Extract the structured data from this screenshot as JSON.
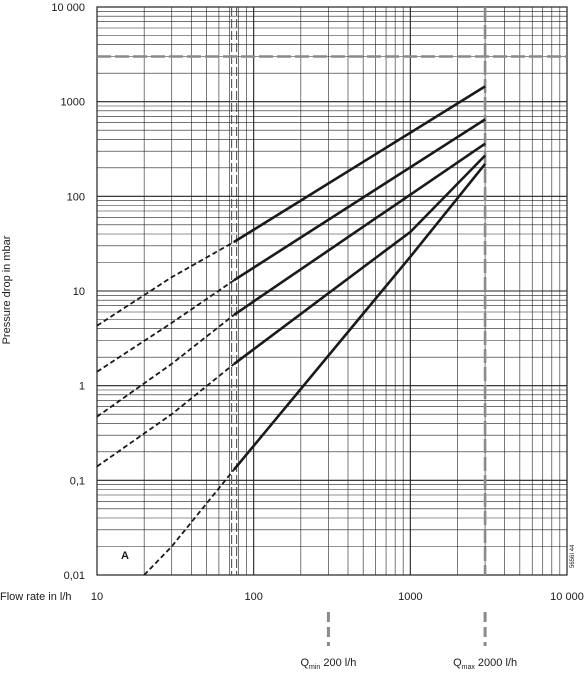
{
  "chart_data": {
    "type": "line",
    "xscale": "log",
    "yscale": "log",
    "xlim": [
      10,
      10000
    ],
    "ylim": [
      0.01,
      10000
    ],
    "xlabel": "Flow rate in l/h",
    "ylabel": "Pressure drop in mbar",
    "x_ticks": [
      10,
      100,
      1000,
      10000
    ],
    "x_tick_labels": [
      "10",
      "100",
      "1000",
      "10 000"
    ],
    "y_ticks": [
      0.01,
      0.1,
      1,
      10,
      100,
      1000,
      10000
    ],
    "y_tick_labels": [
      "0,01",
      "0,1",
      "1",
      "10",
      "100",
      "1000",
      "10 000"
    ],
    "grid": true,
    "series": [
      {
        "dashed": {
          "x": [
            10,
            30,
            75
          ],
          "y": [
            4.3,
            14,
            33
          ]
        },
        "solid": {
          "x": [
            75,
            3000
          ],
          "y": [
            33,
            1450
          ]
        }
      },
      {
        "dashed": {
          "x": [
            10,
            30,
            75
          ],
          "y": [
            1.4,
            4.6,
            13
          ]
        },
        "solid": {
          "x": [
            75,
            3000
          ],
          "y": [
            13,
            650
          ]
        }
      },
      {
        "dashed": {
          "x": [
            10,
            30,
            75
          ],
          "y": [
            0.47,
            1.7,
            5.6
          ]
        },
        "solid": {
          "x": [
            75,
            3000
          ],
          "y": [
            5.6,
            360
          ]
        }
      },
      {
        "dashed": {
          "x": [
            10,
            30,
            75
          ],
          "y": [
            0.14,
            0.5,
            1.7
          ]
        },
        "solid": {
          "x": [
            75,
            1000,
            3000
          ],
          "y": [
            1.7,
            42,
            270
          ]
        }
      },
      {
        "dashed": {
          "x": [
            20,
            30,
            75
          ],
          "y": [
            0.01,
            0.02,
            0.13
          ]
        },
        "solid": {
          "x": [
            75,
            1000,
            3000
          ],
          "y": [
            0.13,
            23,
            220
          ]
        }
      }
    ],
    "reference_lines": {
      "vertical": [
        75,
        3000
      ],
      "horizontal": [
        3000
      ]
    },
    "q_markers": [
      {
        "x": 300,
        "label_main": "Q",
        "label_sub": "min",
        "label_value": " 200 l/h"
      },
      {
        "x": 3000,
        "label_main": "Q",
        "label_sub": "max",
        "label_value": " 2000 l/h"
      }
    ],
    "annotations": {
      "region_label": "A",
      "figure_code": "5656I 44"
    },
    "colors": {
      "curve": "#1a1a1a",
      "grid": "#222222",
      "reference": "#8a8a8a",
      "text": "#1a1a1a"
    }
  }
}
